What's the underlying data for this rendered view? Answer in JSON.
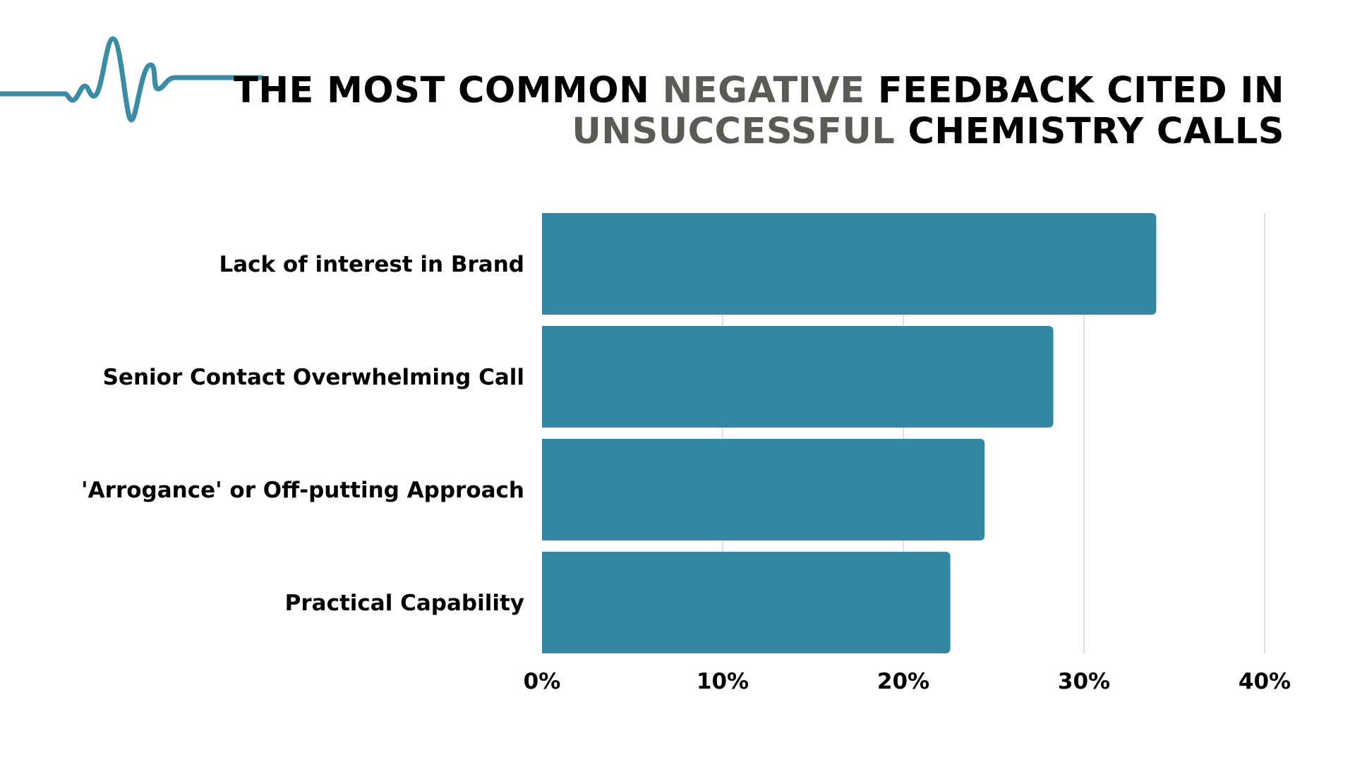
{
  "header": {
    "title_line1": [
      {
        "text": "THE MOST COMMON ",
        "highlight": false
      },
      {
        "text": "NEGATIVE",
        "highlight": true
      },
      {
        "text": " FEEDBACK CITED IN",
        "highlight": false
      }
    ],
    "title_line2": [
      {
        "text": "UNSUCCESSFUL",
        "highlight": true
      },
      {
        "text": " CHEMISTRY CALLS",
        "highlight": false
      }
    ],
    "pulse_icon": "heartbeat-line-icon"
  },
  "colors": {
    "bar": "#3387a3",
    "pulse": "#3a8ba6",
    "highlight_text": "#5a5b55",
    "text": "#000000",
    "grid": "#d4d4d4"
  },
  "chart_data": {
    "type": "bar",
    "orientation": "horizontal",
    "title": "THE MOST COMMON NEGATIVE FEEDBACK CITED IN UNSUCCESSFUL CHEMISTRY CALLS",
    "categories": [
      "Lack of interest in Brand",
      "Senior Contact Overwhelming Call",
      "'Arrogance' or Off-putting Approach",
      "Practical Capability"
    ],
    "values": [
      34,
      28.3,
      24.5,
      22.6
    ],
    "unit": "%",
    "xlim": [
      0,
      40
    ],
    "ticks": [
      "0%",
      "10%",
      "20%",
      "30%",
      "40%"
    ],
    "tick_values": [
      0,
      10,
      20,
      30,
      40
    ],
    "grid": true,
    "legend": "none"
  }
}
